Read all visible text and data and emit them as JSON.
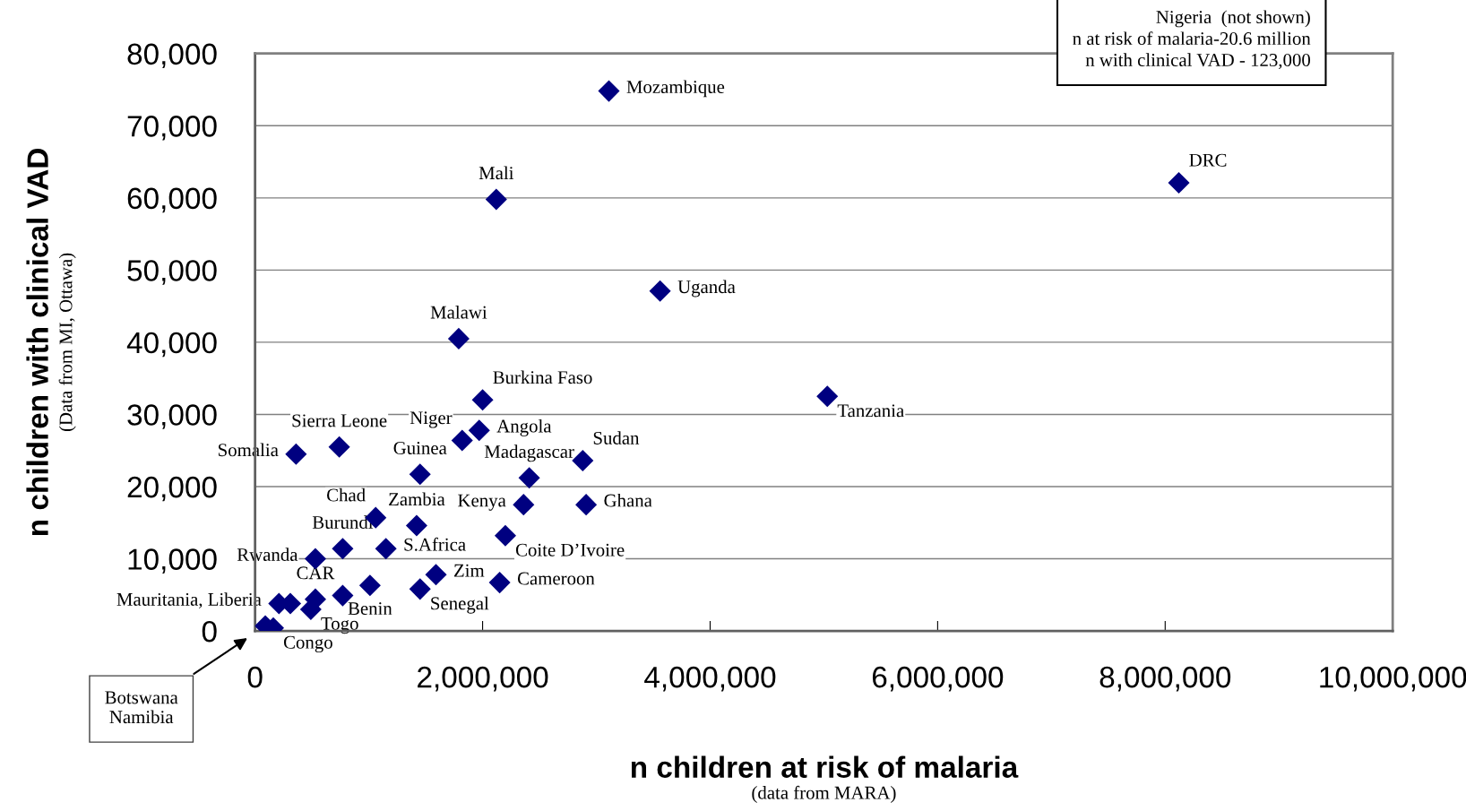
{
  "chart_data": {
    "type": "scatter",
    "xlabel": "n children at risk of malaria",
    "ylabel": "n children with clinical VAD",
    "x": [
      3110000,
      2120000,
      8120000,
      3560000,
      1790000,
      2000000,
      5030000,
      1820000,
      1970000,
      360000,
      740000,
      1450000,
      2880000,
      2410000,
      1060000,
      1420000,
      2360000,
      2910000,
      770000,
      1150000,
      2200000,
      530000,
      1590000,
      2150000,
      1010000,
      1450000,
      770000,
      210000,
      310000,
      530000,
      490000,
      90000,
      160000
    ],
    "series": [
      {
        "color": "#000080",
        "values": [
          74800,
          59800,
          62100,
          47100,
          40500,
          32000,
          32500,
          26400,
          27800,
          24500,
          25500,
          21700,
          23600,
          21200,
          15700,
          14600,
          17500,
          17500,
          11400,
          11400,
          13200,
          10000,
          7800,
          6700,
          6300,
          5800,
          4900,
          3800,
          3800,
          4400,
          3000,
          700,
          400
        ]
      }
    ],
    "marker": "diamond",
    "xlim": [
      0,
      10000000
    ],
    "ylim": [
      0,
      80000
    ],
    "xticks": [
      0,
      {
        "value": 2000000,
        "label": "2,000,000"
      },
      {
        "value": 4000000,
        "label": "4,000,000"
      },
      {
        "value": 6000000,
        "label": "6,000,000"
      },
      {
        "value": 8000000,
        "label": "8,000,000"
      },
      {
        "value": 10000000,
        "label": "10,000,000"
      }
    ],
    "yticks": [
      0,
      {
        "value": 10000,
        "label": "10,000"
      },
      {
        "value": 20000,
        "label": "20,000"
      },
      {
        "value": 30000,
        "label": "30,000"
      },
      {
        "value": 40000,
        "label": "40,000"
      },
      {
        "value": 50000,
        "label": "50,000"
      },
      {
        "value": 60000,
        "label": "60,000"
      },
      {
        "value": 70000,
        "label": "70,000"
      },
      {
        "value": 80000,
        "label": "80,000"
      }
    ],
    "grid": "y",
    "annotations": [
      "Nigeria  (not shown)\nn at risk of malaria-20.6 million\nn with clinical VAD - 123,000",
      "(Data from MI, Ottawa)",
      "(data from MARA)",
      "Botswana\nNamibia",
      {
        "text": "Mozambique",
        "x": 3110000,
        "y": 74800
      },
      {
        "text": "Mali",
        "x": 2120000,
        "y": 59800
      },
      {
        "text": "DRC",
        "x": 8120000,
        "y": 62100
      },
      {
        "text": "Uganda",
        "x": 3560000,
        "y": 47100
      },
      {
        "text": "Malawi",
        "x": 1790000,
        "y": 40500
      },
      {
        "text": "Burkina Faso",
        "x": 2000000,
        "y": 32000
      },
      {
        "text": "Tanzania",
        "x": 5030000,
        "y": 32500
      },
      {
        "text": "Niger",
        "x": 1820000,
        "y": 26400
      },
      {
        "text": "Angola",
        "x": 1970000,
        "y": 27800
      },
      {
        "text": "Somalia",
        "x": 360000,
        "y": 24500
      },
      {
        "text": "Sierra Leone",
        "x": 740000,
        "y": 25500
      },
      {
        "text": "Guinea",
        "x": 1450000,
        "y": 21700
      },
      {
        "text": "Sudan",
        "x": 2880000,
        "y": 23600
      },
      {
        "text": "Madagascar",
        "x": 2410000,
        "y": 21200
      },
      {
        "text": "Chad",
        "x": 1060000,
        "y": 15700
      },
      {
        "text": "Zambia",
        "x": 1420000,
        "y": 14600
      },
      {
        "text": "Kenya",
        "x": 2360000,
        "y": 17500
      },
      {
        "text": "Ghana",
        "x": 2910000,
        "y": 17500
      },
      {
        "text": "Burundi",
        "x": 770000,
        "y": 11400
      },
      {
        "text": "S.Africa",
        "x": 1150000,
        "y": 11400
      },
      {
        "text": "Coite D’Ivoire",
        "x": 2200000,
        "y": 13200
      },
      {
        "text": "Rwanda",
        "x": 530000,
        "y": 10000
      },
      {
        "text": "Zim",
        "x": 1590000,
        "y": 7800
      },
      {
        "text": "Cameroon",
        "x": 2150000,
        "y": 6700
      },
      {
        "text": "Benin",
        "x": 1010000,
        "y": 6300
      },
      {
        "text": "Senegal",
        "x": 1450000,
        "y": 5800
      },
      {
        "text": "Mauritania, Liberia",
        "x": 210000,
        "y": 3800
      },
      {
        "text": "CAR",
        "x": 530000,
        "y": 4400
      },
      {
        "text": "Togo",
        "x": 490000,
        "y": 3000
      },
      {
        "text": "Congo",
        "x": 160000,
        "y": 400
      }
    ]
  }
}
